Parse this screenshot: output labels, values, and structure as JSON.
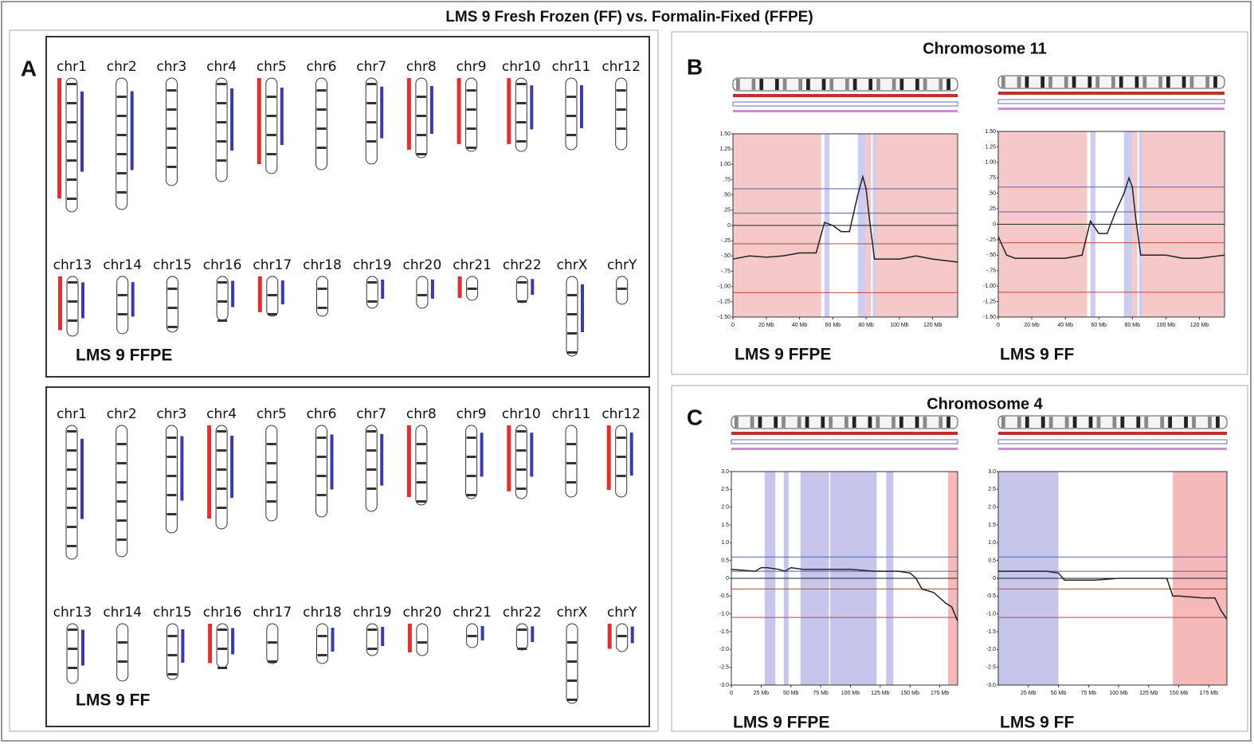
{
  "title": "LMS 9 Fresh Frozen (FF) vs. Formalin-Fixed (FFPE)",
  "panel_a": {
    "label": "A",
    "chromosomes": [
      "chr1",
      "chr2",
      "chr3",
      "chr4",
      "chr5",
      "chr6",
      "chr7",
      "chr8",
      "chr9",
      "chr10",
      "chr11",
      "chr12",
      "chr13",
      "chr14",
      "chr15",
      "chr16",
      "chr17",
      "chr18",
      "chr19",
      "chr20",
      "chr21",
      "chr22",
      "chrX",
      "chrY"
    ],
    "karyotypes": [
      {
        "caption": "LMS 9 FFPE"
      },
      {
        "caption": "LMS 9 FF"
      }
    ]
  },
  "panels": [
    {
      "label": "B",
      "title": "Chromosome 11"
    },
    {
      "label": "C",
      "title": "Chromosome 4"
    }
  ],
  "chart_data": [
    {
      "type": "line",
      "caption": "LMS 9 FFPE",
      "color": "#222222",
      "x": [
        0,
        10,
        20,
        30,
        40,
        50,
        55,
        60,
        65,
        70,
        75,
        78,
        80,
        82,
        85,
        90,
        100,
        110,
        120,
        135
      ],
      "values": [
        -0.55,
        -0.5,
        -0.52,
        -0.5,
        -0.45,
        -0.45,
        0.05,
        0,
        -0.1,
        -0.1,
        0.5,
        0.8,
        0.6,
        0.1,
        -0.55,
        -0.55,
        -0.55,
        -0.5,
        -0.55,
        -0.6
      ],
      "xlim": [
        0,
        135
      ],
      "ylim": [
        -1.5,
        1.5
      ],
      "xticks": [
        0,
        {
          "value": 20,
          "label": "20 Mb"
        },
        {
          "value": 40,
          "label": "40 Mb"
        },
        {
          "value": 60,
          "label": "60 Mb"
        },
        {
          "value": 80,
          "label": "80 Mb"
        },
        {
          "value": 100,
          "label": "100 Mb"
        },
        {
          "value": 120,
          "label": "120 Mb"
        }
      ],
      "yticks": [
        {
          "value": 1.5,
          "label": "1.50"
        },
        {
          "value": 1.25,
          "label": "1.25"
        },
        {
          "value": 1,
          "label": "1.00"
        },
        {
          "value": 0.75,
          "label": ".75"
        },
        {
          "value": 0.5,
          "label": ".50"
        },
        {
          "value": 0.25,
          "label": ".25"
        },
        0,
        {
          "value": -0.25,
          "label": "-.25"
        },
        {
          "value": -0.5,
          "label": "-.50"
        },
        {
          "value": -0.75,
          "label": "-.75"
        },
        {
          "value": -1,
          "label": "-1.00"
        },
        {
          "value": -1.25,
          "label": "-1.25"
        },
        {
          "value": -1.5,
          "label": "-1.50"
        }
      ],
      "thresholds": [
        {
          "value": 0.6,
          "color": "#5560b0"
        },
        {
          "value": 0.2,
          "color": "#5560b0"
        },
        {
          "value": -0.3,
          "color": "#c84040"
        },
        {
          "value": -1.1,
          "color": "#c84040"
        }
      ],
      "regions": [
        {
          "start": 0,
          "end": 53,
          "color": "#f4bcbc"
        },
        {
          "start": 55,
          "end": 58,
          "color": "#c0c0ec"
        },
        {
          "start": 75,
          "end": 80,
          "color": "#c0c0ec"
        },
        {
          "start": 80,
          "end": 83,
          "color": "#f4bcbc"
        },
        {
          "start": 84,
          "end": 86,
          "color": "#c0c0ec"
        },
        {
          "start": 86,
          "end": 135,
          "color": "#f4bcbc"
        }
      ]
    },
    {
      "type": "line",
      "caption": "LMS 9 FF",
      "color": "#222222",
      "x": [
        0,
        5,
        10,
        20,
        30,
        40,
        50,
        55,
        60,
        65,
        70,
        75,
        78,
        80,
        82,
        85,
        90,
        100,
        110,
        120,
        135
      ],
      "values": [
        -0.2,
        -0.5,
        -0.55,
        -0.55,
        -0.55,
        -0.55,
        -0.5,
        0.05,
        -0.15,
        -0.15,
        0.2,
        0.5,
        0.75,
        0.6,
        0.1,
        -0.5,
        -0.5,
        -0.5,
        -0.55,
        -0.55,
        -0.5
      ],
      "xlim": [
        0,
        135
      ],
      "ylim": [
        -1.5,
        1.5
      ],
      "xticks": [
        0,
        {
          "value": 20,
          "label": "20 Mb"
        },
        {
          "value": 40,
          "label": "40 Mb"
        },
        {
          "value": 60,
          "label": "60 Mb"
        },
        {
          "value": 80,
          "label": "80 Mb"
        },
        {
          "value": 100,
          "label": "100 Mb"
        },
        {
          "value": 120,
          "label": "120 Mb"
        }
      ],
      "yticks": [
        {
          "value": 1.5,
          "label": "1.50"
        },
        {
          "value": 1.25,
          "label": "1.25"
        },
        {
          "value": 1,
          "label": "1.00"
        },
        {
          "value": 0.75,
          "label": ".75"
        },
        {
          "value": 0.5,
          "label": ".50"
        },
        {
          "value": 0.25,
          "label": ".25"
        },
        0,
        {
          "value": -0.25,
          "label": "-.25"
        },
        {
          "value": -0.5,
          "label": "-.50"
        },
        {
          "value": -0.75,
          "label": "-.75"
        },
        {
          "value": -1,
          "label": "-1.00"
        },
        {
          "value": -1.25,
          "label": "-1.25"
        },
        {
          "value": -1.5,
          "label": "-1.50"
        }
      ],
      "thresholds": [
        {
          "value": 0.6,
          "color": "#5560b0"
        },
        {
          "value": 0.2,
          "color": "#5560b0"
        },
        {
          "value": -0.3,
          "color": "#c84040"
        },
        {
          "value": -1.1,
          "color": "#c84040"
        }
      ],
      "regions": [
        {
          "start": 0,
          "end": 53,
          "color": "#f4bcbc"
        },
        {
          "start": 55,
          "end": 58,
          "color": "#c0c0ec"
        },
        {
          "start": 75,
          "end": 80,
          "color": "#c0c0ec"
        },
        {
          "start": 80,
          "end": 83,
          "color": "#f4bcbc"
        },
        {
          "start": 84,
          "end": 86,
          "color": "#c0c0ec"
        },
        {
          "start": 86,
          "end": 135,
          "color": "#f4bcbc"
        }
      ]
    },
    {
      "type": "line",
      "caption": "LMS 9 FFPE",
      "color": "#222222",
      "x": [
        0,
        20,
        25,
        30,
        40,
        45,
        50,
        60,
        80,
        100,
        120,
        130,
        140,
        150,
        155,
        160,
        170,
        180,
        185,
        190
      ],
      "values": [
        0.25,
        0.2,
        0.3,
        0.3,
        0.25,
        0.2,
        0.3,
        0.25,
        0.25,
        0.25,
        0.2,
        0.2,
        0.2,
        0.15,
        0,
        -0.3,
        -0.4,
        -0.7,
        -0.8,
        -1.2
      ],
      "xlim": [
        0,
        190
      ],
      "ylim": [
        -3,
        3
      ],
      "xticks": [
        0,
        {
          "value": 25,
          "label": "25 Mb"
        },
        {
          "value": 50,
          "label": "50 Mb"
        },
        {
          "value": 75,
          "label": "75 Mb"
        },
        {
          "value": 100,
          "label": "100 Mb"
        },
        {
          "value": 125,
          "label": "125 Mb"
        },
        {
          "value": 150,
          "label": "150 Mb"
        },
        {
          "value": 175,
          "label": "175 Mb"
        }
      ],
      "yticks": [
        {
          "value": 3,
          "label": "3.0"
        },
        {
          "value": 2.5,
          "label": "2.5"
        },
        {
          "value": 2,
          "label": "2.0"
        },
        {
          "value": 1.5,
          "label": "1.5"
        },
        {
          "value": 1,
          "label": "1.0"
        },
        {
          "value": 0.5,
          "label": "0.5"
        },
        0,
        {
          "value": -0.5,
          "label": "-0.5"
        },
        {
          "value": -1,
          "label": "-1.0"
        },
        {
          "value": -1.5,
          "label": "-1.5"
        },
        {
          "value": -2,
          "label": "-2.0"
        },
        {
          "value": -2.5,
          "label": "-2.5"
        },
        {
          "value": -3,
          "label": "-3.0"
        }
      ],
      "thresholds": [
        {
          "value": 0.6,
          "color": "#5560b0"
        },
        {
          "value": 0.2,
          "color": "#5560b0"
        },
        {
          "value": -0.3,
          "color": "#c84040"
        },
        {
          "value": -1.1,
          "color": "#c84040"
        }
      ],
      "regions": [
        {
          "start": 28,
          "end": 37,
          "color": "#b8b8e8"
        },
        {
          "start": 44,
          "end": 48,
          "color": "#b8b8e8"
        },
        {
          "start": 58,
          "end": 82,
          "color": "#b8b8e8"
        },
        {
          "start": 83,
          "end": 122,
          "color": "#b8b8e8"
        },
        {
          "start": 130,
          "end": 136,
          "color": "#b8b8e8"
        },
        {
          "start": 182,
          "end": 190,
          "color": "#f4a8a8"
        }
      ]
    },
    {
      "type": "line",
      "caption": "LMS 9 FF",
      "color": "#222222",
      "x": [
        0,
        20,
        40,
        50,
        55,
        60,
        80,
        100,
        120,
        140,
        145,
        150,
        170,
        180,
        185,
        190
      ],
      "values": [
        0.2,
        0.2,
        0.2,
        0.15,
        -0.05,
        -0.05,
        -0.05,
        0,
        0,
        0,
        -0.5,
        -0.5,
        -0.55,
        -0.55,
        -0.9,
        -1.15
      ],
      "xlim": [
        0,
        190
      ],
      "ylim": [
        -3,
        3
      ],
      "xticks": [
        {
          "value": 25,
          "label": "25 Mb"
        },
        {
          "value": 50,
          "label": "50 Mb"
        },
        {
          "value": 75,
          "label": "75 Mb"
        },
        {
          "value": 100,
          "label": "100 Mb"
        },
        {
          "value": 125,
          "label": "125 Mb"
        },
        {
          "value": 150,
          "label": "150 Mb"
        },
        {
          "value": 175,
          "label": "175 Mb"
        }
      ],
      "yticks": [
        {
          "value": 3,
          "label": "3.0"
        },
        {
          "value": 2.5,
          "label": "2.5"
        },
        {
          "value": 2,
          "label": "2.0"
        },
        {
          "value": 1.5,
          "label": "1.5"
        },
        {
          "value": 1,
          "label": "1.0"
        },
        {
          "value": 0.5,
          "label": "0.5"
        },
        0,
        {
          "value": -0.5,
          "label": "-0.5"
        },
        {
          "value": -1,
          "label": "-1.0"
        },
        {
          "value": -1.5,
          "label": "-1.5"
        },
        {
          "value": -2,
          "label": "-2.0"
        },
        {
          "value": -2.5,
          "label": "-2.5"
        },
        {
          "value": -3,
          "label": "-3.0"
        }
      ],
      "thresholds": [
        {
          "value": 0.6,
          "color": "#5560b0"
        },
        {
          "value": 0.2,
          "color": "#5560b0"
        },
        {
          "value": -0.3,
          "color": "#c84040"
        },
        {
          "value": -1.1,
          "color": "#c84040"
        }
      ],
      "regions": [
        {
          "start": 0,
          "end": 50,
          "color": "#b8b8e8"
        },
        {
          "start": 145,
          "end": 190,
          "color": "#f4a8a8"
        }
      ]
    }
  ]
}
